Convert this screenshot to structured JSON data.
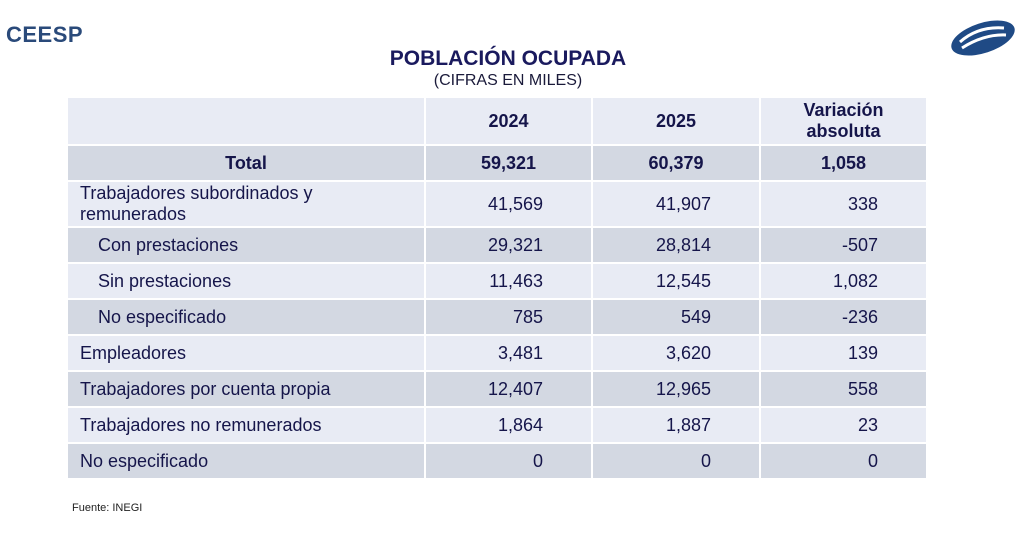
{
  "header": {
    "logo_text": "CEESP",
    "title": "POBLACIÓN OCUPADA",
    "subtitle": "(CIFRAS EN MILES)",
    "brand_color": "#2a4a7a",
    "logo_icon": "ceesp-swirl-logo"
  },
  "table": {
    "columns": [
      "",
      "2024",
      "2025",
      "Variación absoluta"
    ],
    "total": {
      "label": "Total",
      "y2024": "59,321",
      "y2025": "60,379",
      "var": "1,058"
    },
    "rows": [
      {
        "label": "Trabajadores subordinados y remunerados",
        "y2024": "41,569",
        "y2025": "41,907",
        "var": "338"
      },
      {
        "label": "Con prestaciones",
        "y2024": "29,321",
        "y2025": "28,814",
        "var": "-507"
      },
      {
        "label": "Sin prestaciones",
        "y2024": "11,463",
        "y2025": "12,545",
        "var": "1,082"
      },
      {
        "label": "No especificado",
        "y2024": "785",
        "y2025": "549",
        "var": "-236"
      },
      {
        "label": "Empleadores",
        "y2024": "3,481",
        "y2025": "3,620",
        "var": "139"
      },
      {
        "label": "Trabajadores por cuenta propia",
        "y2024": "12,407",
        "y2025": "12,965",
        "var": "558"
      },
      {
        "label": "Trabajadores no remunerados",
        "y2024": "1,864",
        "y2025": "1,887",
        "var": "23"
      },
      {
        "label": "No especificado",
        "y2024": "0",
        "y2025": "0",
        "var": "0"
      }
    ]
  },
  "footer": {
    "source": "Fuente: INEGI"
  }
}
